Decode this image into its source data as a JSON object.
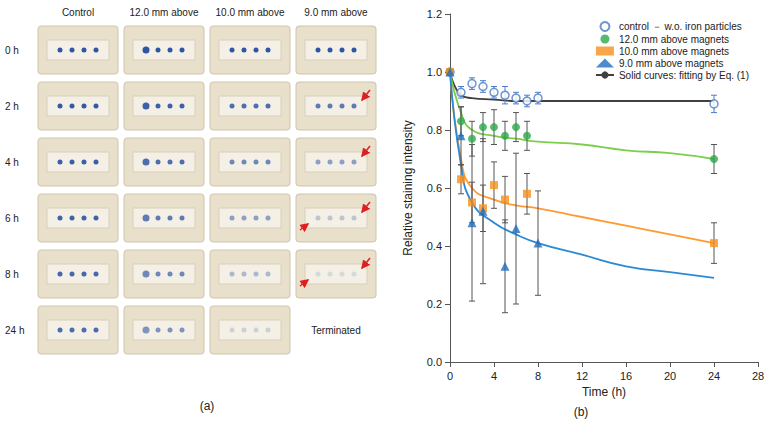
{
  "panel_a": {
    "label": "(a)",
    "columns": [
      "Control",
      "12.0 mm above",
      "10.0 mm above",
      "9.0 mm above"
    ],
    "rows": [
      "0 h",
      "2 h",
      "4 h",
      "6 h",
      "8 h",
      "24 h"
    ],
    "terminated": {
      "row": "24 h",
      "column": "9.0 mm above",
      "text": "Terminated"
    }
  },
  "chart_data": {
    "type": "scatter",
    "panel_label": "(b)",
    "x_label": "Time (h)",
    "y_label": "Relative staining intensity",
    "xlim": [
      0,
      28
    ],
    "xticks": [
      0,
      4,
      8,
      12,
      16,
      20,
      24,
      28
    ],
    "ylim": [
      0,
      1.2
    ],
    "yticks": [
      {
        "value": 0,
        "label": "0.0"
      },
      0.2,
      0.4,
      0.6,
      0.8,
      {
        "value": 1,
        "label": "1.0"
      },
      1.2
    ],
    "grid": false,
    "legend": "top-right",
    "series": [
      {
        "name": "control － w.o. iron particles",
        "type": "scatter",
        "marker": "circle_open",
        "color": "#4a7cc4",
        "x": [
          0,
          1,
          2,
          3,
          4,
          5,
          6,
          7,
          8,
          24
        ],
        "values": [
          1.0,
          0.93,
          0.96,
          0.95,
          0.93,
          0.92,
          0.91,
          0.9,
          0.91,
          0.89
        ],
        "errors": [
          0.0,
          0.02,
          0.02,
          0.02,
          0.02,
          0.03,
          0.02,
          0.02,
          0.02,
          0.03
        ]
      },
      {
        "name": "12.0 mm above magnets",
        "type": "scatter",
        "marker": "circle",
        "color": "#2ca84a",
        "x": [
          0,
          1,
          2,
          3,
          4,
          5,
          6,
          7,
          24
        ],
        "values": [
          1.0,
          0.83,
          0.77,
          0.81,
          0.81,
          0.78,
          0.81,
          0.78,
          0.7
        ],
        "errors": [
          0.0,
          0.05,
          0.06,
          0.05,
          0.06,
          0.05,
          0.05,
          0.05,
          0.05
        ]
      },
      {
        "name": "10.0 mm above magnets",
        "type": "scatter",
        "marker": "square",
        "color": "#f7901e",
        "x": [
          0,
          1,
          2,
          3,
          4,
          5,
          7,
          24
        ],
        "values": [
          1.0,
          0.63,
          0.55,
          0.53,
          0.61,
          0.56,
          0.58,
          0.41
        ],
        "errors": [
          0.0,
          0.05,
          0.07,
          0.08,
          0.08,
          0.08,
          0.07,
          0.07
        ]
      },
      {
        "name": "9.0 mm above magnets",
        "type": "scatter",
        "marker": "triangle",
        "color": "#1f6fc0",
        "x": [
          0,
          1,
          2,
          3,
          5,
          6,
          8
        ],
        "values": [
          1.0,
          0.78,
          0.48,
          0.52,
          0.33,
          0.46,
          0.41
        ],
        "errors": [
          0.0,
          0.1,
          0.27,
          0.25,
          0.16,
          0.26,
          0.18
        ]
      },
      {
        "name": "Solid curves: fitting by Eq. (1)",
        "type": "line",
        "line_style": "solid",
        "color": "#404040",
        "x": [
          0,
          1,
          2,
          4,
          6,
          8,
          12,
          16,
          20,
          24
        ],
        "values": [
          1.0,
          0.92,
          0.91,
          0.905,
          0.9,
          0.9,
          0.9,
          0.9,
          0.9,
          0.9
        ]
      },
      {
        "name": "Solid curves: fitting by Eq. (1)",
        "type": "line",
        "line_style": "solid",
        "color": "#7ccf4a",
        "x": [
          0,
          1,
          2,
          4,
          6,
          8,
          12,
          16,
          20,
          24
        ],
        "values": [
          1.0,
          0.86,
          0.8,
          0.78,
          0.77,
          0.76,
          0.75,
          0.73,
          0.72,
          0.7
        ]
      },
      {
        "name": "Solid curves: fitting by Eq. (1)",
        "type": "line",
        "line_style": "solid",
        "color": "#ff9a33",
        "x": [
          0,
          1,
          2,
          4,
          6,
          8,
          12,
          16,
          20,
          24
        ],
        "values": [
          1.0,
          0.7,
          0.6,
          0.56,
          0.54,
          0.53,
          0.5,
          0.47,
          0.44,
          0.41
        ]
      },
      {
        "name": "Solid curves: fitting by Eq. (1)",
        "type": "line",
        "line_style": "solid",
        "color": "#2a8ad4",
        "x": [
          0,
          1,
          2,
          4,
          6,
          8,
          12,
          16,
          20,
          24
        ],
        "values": [
          1.0,
          0.68,
          0.55,
          0.48,
          0.44,
          0.41,
          0.37,
          0.33,
          0.31,
          0.29
        ]
      }
    ]
  }
}
